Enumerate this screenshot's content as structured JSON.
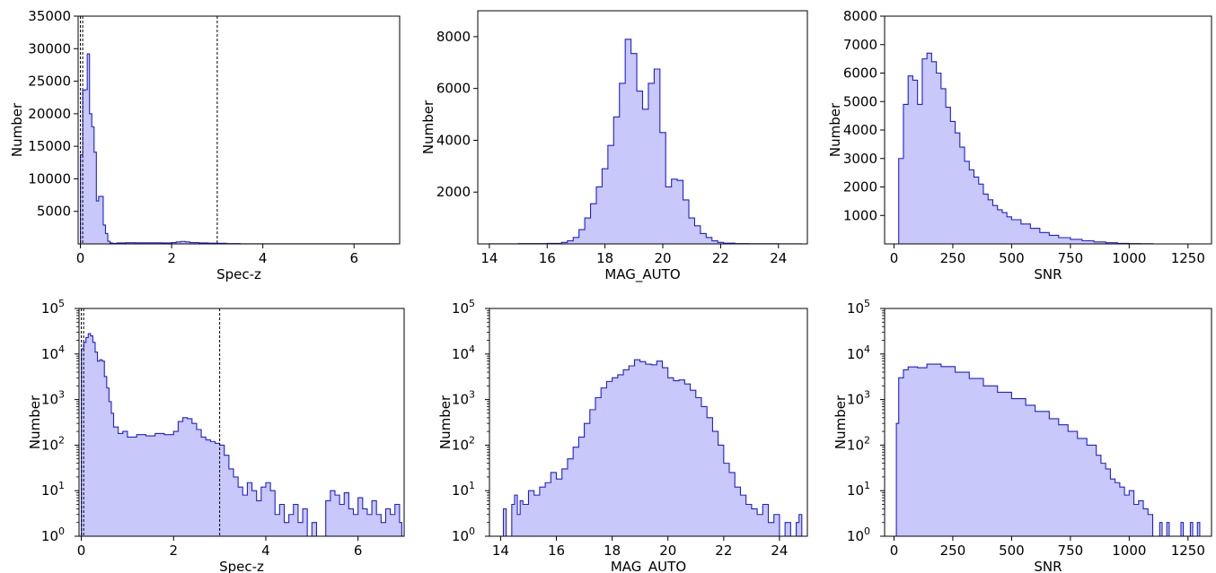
{
  "chart_data": [
    {
      "type": "histogram",
      "xlabel": "Spec-z",
      "ylabel": "Number",
      "yscale": "linear",
      "xlim": [
        -0.05,
        7.0
      ],
      "ylim": [
        0,
        35000
      ],
      "xticks": [
        0,
        2,
        4,
        6
      ],
      "yticks": [
        5000,
        10000,
        15000,
        20000,
        25000,
        30000,
        35000
      ],
      "ytick_labels": [
        "5000",
        "10000",
        "15000",
        "20000",
        "25000",
        "30000",
        "35000"
      ],
      "vlines": [
        0.0,
        0.05,
        3.0
      ],
      "color": "#1f1fd6",
      "fill": "#c8c8fa",
      "bins": [
        [
          0.0,
          13700
        ],
        [
          0.05,
          23600
        ],
        [
          0.1,
          23700
        ],
        [
          0.15,
          29200
        ],
        [
          0.2,
          20000
        ],
        [
          0.25,
          18000
        ],
        [
          0.3,
          14100
        ],
        [
          0.35,
          6600
        ],
        [
          0.4,
          7300
        ],
        [
          0.45,
          7300
        ],
        [
          0.5,
          2900
        ],
        [
          0.55,
          1600
        ],
        [
          0.6,
          400
        ],
        [
          0.65,
          150
        ],
        [
          0.7,
          80
        ],
        [
          0.8,
          150
        ],
        [
          1.0,
          180
        ],
        [
          1.2,
          170
        ],
        [
          1.5,
          160
        ],
        [
          1.8,
          150
        ],
        [
          2.0,
          200
        ],
        [
          2.1,
          300
        ],
        [
          2.2,
          380
        ],
        [
          2.3,
          300
        ],
        [
          2.4,
          200
        ],
        [
          2.6,
          140
        ],
        [
          2.8,
          110
        ],
        [
          3.0,
          90
        ],
        [
          3.2,
          40
        ],
        [
          3.5,
          15
        ],
        [
          4.0,
          5
        ],
        [
          5.0,
          3
        ],
        [
          6.0,
          5
        ],
        [
          6.95,
          0
        ]
      ]
    },
    {
      "type": "histogram",
      "xlabel": "MAG_AUTO",
      "ylabel": "Number",
      "yscale": "linear",
      "xlim": [
        13.6,
        25.0
      ],
      "ylim": [
        0,
        9000
      ],
      "xticks": [
        14,
        16,
        18,
        20,
        22,
        24
      ],
      "yticks": [
        2000,
        4000,
        6000,
        8000
      ],
      "ytick_labels": [
        "2000",
        "4000",
        "6000",
        "8000"
      ],
      "color": "#1f1fd6",
      "fill": "#c8c8fa",
      "bins": [
        [
          14.0,
          4
        ],
        [
          15.0,
          10
        ],
        [
          16.0,
          20
        ],
        [
          16.5,
          60
        ],
        [
          16.7,
          120
        ],
        [
          16.9,
          250
        ],
        [
          17.1,
          550
        ],
        [
          17.3,
          1000
        ],
        [
          17.5,
          1550
        ],
        [
          17.7,
          2200
        ],
        [
          17.9,
          2900
        ],
        [
          18.1,
          3800
        ],
        [
          18.3,
          4900
        ],
        [
          18.5,
          6200
        ],
        [
          18.7,
          7900
        ],
        [
          18.9,
          7350
        ],
        [
          19.1,
          5900
        ],
        [
          19.3,
          5200
        ],
        [
          19.5,
          6200
        ],
        [
          19.7,
          6750
        ],
        [
          19.9,
          4300
        ],
        [
          20.1,
          2200
        ],
        [
          20.3,
          2500
        ],
        [
          20.5,
          2450
        ],
        [
          20.7,
          1700
        ],
        [
          20.9,
          1000
        ],
        [
          21.1,
          700
        ],
        [
          21.3,
          400
        ],
        [
          21.5,
          250
        ],
        [
          21.7,
          120
        ],
        [
          21.9,
          60
        ],
        [
          22.1,
          30
        ],
        [
          22.5,
          10
        ],
        [
          23.0,
          5
        ],
        [
          24.0,
          3
        ],
        [
          24.8,
          0
        ]
      ]
    },
    {
      "type": "histogram",
      "xlabel": "SNR",
      "ylabel": "Number",
      "yscale": "linear",
      "xlim": [
        -40,
        1350
      ],
      "ylim": [
        0,
        8000
      ],
      "xticks": [
        0,
        250,
        500,
        750,
        1000,
        1250
      ],
      "yticks": [
        1000,
        2000,
        3000,
        4000,
        5000,
        6000,
        7000,
        8000
      ],
      "ytick_labels": [
        "1000",
        "2000",
        "3000",
        "4000",
        "5000",
        "6000",
        "7000",
        "8000"
      ],
      "color": "#1f1fd6",
      "fill": "#c8c8fa",
      "bins": [
        [
          0,
          0
        ],
        [
          20,
          3000
        ],
        [
          40,
          4900
        ],
        [
          60,
          5900
        ],
        [
          80,
          5750
        ],
        [
          100,
          4900
        ],
        [
          120,
          6500
        ],
        [
          140,
          6700
        ],
        [
          160,
          6400
        ],
        [
          180,
          6000
        ],
        [
          200,
          5450
        ],
        [
          220,
          4800
        ],
        [
          240,
          4300
        ],
        [
          260,
          3900
        ],
        [
          280,
          3400
        ],
        [
          300,
          2900
        ],
        [
          320,
          2600
        ],
        [
          340,
          2350
        ],
        [
          360,
          2100
        ],
        [
          380,
          1750
        ],
        [
          400,
          1550
        ],
        [
          420,
          1350
        ],
        [
          440,
          1200
        ],
        [
          460,
          1100
        ],
        [
          480,
          950
        ],
        [
          500,
          850
        ],
        [
          540,
          700
        ],
        [
          580,
          550
        ],
        [
          620,
          400
        ],
        [
          660,
          300
        ],
        [
          700,
          220
        ],
        [
          750,
          160
        ],
        [
          800,
          110
        ],
        [
          850,
          70
        ],
        [
          900,
          40
        ],
        [
          950,
          20
        ],
        [
          1000,
          10
        ],
        [
          1050,
          5
        ],
        [
          1100,
          0
        ]
      ]
    },
    {
      "type": "histogram",
      "xlabel": "Spec-z",
      "ylabel": "Number",
      "yscale": "log",
      "xlim": [
        -0.05,
        7.0
      ],
      "ylim": [
        1,
        100000
      ],
      "xticks": [
        0,
        2,
        4,
        6
      ],
      "yticks": [
        1,
        10,
        100,
        1000,
        10000,
        100000
      ],
      "ytick_labels": [
        "10^0",
        "10^1",
        "10^2",
        "10^3",
        "10^4",
        "10^5"
      ],
      "vlines": [
        0.0,
        0.05,
        3.0
      ],
      "color": "#1f1fd6",
      "fill": "#c8c8fa",
      "bins": [
        [
          0.0,
          13000
        ],
        [
          0.05,
          18000
        ],
        [
          0.1,
          23000
        ],
        [
          0.15,
          28000
        ],
        [
          0.2,
          25000
        ],
        [
          0.25,
          18000
        ],
        [
          0.3,
          11000
        ],
        [
          0.35,
          7000
        ],
        [
          0.4,
          7500
        ],
        [
          0.45,
          7000
        ],
        [
          0.5,
          3200
        ],
        [
          0.55,
          1800
        ],
        [
          0.6,
          900
        ],
        [
          0.65,
          500
        ],
        [
          0.7,
          250
        ],
        [
          0.8,
          180
        ],
        [
          0.9,
          200
        ],
        [
          1.0,
          150
        ],
        [
          1.2,
          170
        ],
        [
          1.4,
          160
        ],
        [
          1.6,
          180
        ],
        [
          1.8,
          170
        ],
        [
          2.0,
          200
        ],
        [
          2.1,
          330
        ],
        [
          2.2,
          400
        ],
        [
          2.3,
          380
        ],
        [
          2.4,
          300
        ],
        [
          2.5,
          220
        ],
        [
          2.6,
          150
        ],
        [
          2.7,
          130
        ],
        [
          2.8,
          120
        ],
        [
          2.9,
          110
        ],
        [
          3.0,
          100
        ],
        [
          3.1,
          60
        ],
        [
          3.2,
          30
        ],
        [
          3.3,
          20
        ],
        [
          3.4,
          12
        ],
        [
          3.5,
          8
        ],
        [
          3.6,
          15
        ],
        [
          3.7,
          10
        ],
        [
          3.8,
          6
        ],
        [
          3.9,
          12
        ],
        [
          4.0,
          15
        ],
        [
          4.1,
          10
        ],
        [
          4.2,
          3
        ],
        [
          4.3,
          5
        ],
        [
          4.4,
          2
        ],
        [
          4.5,
          3
        ],
        [
          4.6,
          5
        ],
        [
          4.7,
          2
        ],
        [
          4.8,
          4
        ],
        [
          4.9,
          1
        ],
        [
          5.0,
          2
        ],
        [
          5.1,
          1
        ],
        [
          5.2,
          0
        ],
        [
          5.3,
          6
        ],
        [
          5.4,
          10
        ],
        [
          5.5,
          8
        ],
        [
          5.6,
          5
        ],
        [
          5.7,
          9
        ],
        [
          5.8,
          4
        ],
        [
          5.9,
          3
        ],
        [
          6.0,
          7
        ],
        [
          6.1,
          4
        ],
        [
          6.2,
          3
        ],
        [
          6.3,
          6
        ],
        [
          6.4,
          3
        ],
        [
          6.5,
          2
        ],
        [
          6.6,
          4
        ],
        [
          6.7,
          3
        ],
        [
          6.8,
          5
        ],
        [
          6.9,
          2
        ],
        [
          6.95,
          0
        ]
      ]
    },
    {
      "type": "histogram",
      "xlabel": "MAG_AUTO",
      "ylabel": "Number",
      "yscale": "log",
      "xlim": [
        13.6,
        25.0
      ],
      "ylim": [
        1,
        100000
      ],
      "xticks": [
        14,
        16,
        18,
        20,
        22,
        24
      ],
      "yticks": [
        1,
        10,
        100,
        1000,
        10000,
        100000
      ],
      "ytick_labels": [
        "10^0",
        "10^1",
        "10^2",
        "10^3",
        "10^4",
        "10^5"
      ],
      "color": "#1f1fd6",
      "fill": "#c8c8fa",
      "bins": [
        [
          14.1,
          4
        ],
        [
          14.2,
          1
        ],
        [
          14.4,
          5
        ],
        [
          14.5,
          8
        ],
        [
          14.6,
          3
        ],
        [
          14.7,
          6
        ],
        [
          14.8,
          5
        ],
        [
          15.0,
          10
        ],
        [
          15.2,
          8
        ],
        [
          15.4,
          12
        ],
        [
          15.6,
          15
        ],
        [
          15.8,
          25
        ],
        [
          16.0,
          18
        ],
        [
          16.2,
          30
        ],
        [
          16.4,
          50
        ],
        [
          16.6,
          90
        ],
        [
          16.8,
          150
        ],
        [
          17.0,
          300
        ],
        [
          17.2,
          600
        ],
        [
          17.4,
          1100
        ],
        [
          17.6,
          1800
        ],
        [
          17.8,
          2500
        ],
        [
          18.0,
          3000
        ],
        [
          18.2,
          3500
        ],
        [
          18.4,
          4500
        ],
        [
          18.6,
          5500
        ],
        [
          18.8,
          7500
        ],
        [
          19.0,
          6800
        ],
        [
          19.2,
          6000
        ],
        [
          19.4,
          5800
        ],
        [
          19.6,
          7000
        ],
        [
          19.8,
          5000
        ],
        [
          20.0,
          3000
        ],
        [
          20.2,
          2600
        ],
        [
          20.4,
          2700
        ],
        [
          20.6,
          2200
        ],
        [
          20.8,
          1600
        ],
        [
          21.0,
          1100
        ],
        [
          21.2,
          700
        ],
        [
          21.4,
          400
        ],
        [
          21.6,
          200
        ],
        [
          21.8,
          100
        ],
        [
          22.0,
          40
        ],
        [
          22.2,
          25
        ],
        [
          22.4,
          12
        ],
        [
          22.6,
          8
        ],
        [
          22.8,
          5
        ],
        [
          23.0,
          4
        ],
        [
          23.2,
          3
        ],
        [
          23.4,
          5
        ],
        [
          23.6,
          2
        ],
        [
          23.8,
          3
        ],
        [
          24.0,
          1
        ],
        [
          24.2,
          2
        ],
        [
          24.4,
          1
        ],
        [
          24.6,
          2
        ],
        [
          24.7,
          3
        ],
        [
          24.8,
          0
        ]
      ]
    },
    {
      "type": "histogram",
      "xlabel": "SNR",
      "ylabel": "Number",
      "yscale": "log",
      "xlim": [
        -40,
        1350
      ],
      "ylim": [
        1,
        100000
      ],
      "xticks": [
        0,
        250,
        500,
        750,
        1000,
        1250
      ],
      "yticks": [
        1,
        10,
        100,
        1000,
        10000,
        100000
      ],
      "ytick_labels": [
        "10^0",
        "10^1",
        "10^2",
        "10^3",
        "10^4",
        "10^5"
      ],
      "color": "#1f1fd6",
      "fill": "#c8c8fa",
      "bins": [
        [
          0,
          0
        ],
        [
          10,
          300
        ],
        [
          20,
          3000
        ],
        [
          40,
          4500
        ],
        [
          60,
          5200
        ],
        [
          100,
          5000
        ],
        [
          140,
          6000
        ],
        [
          200,
          5300
        ],
        [
          260,
          4000
        ],
        [
          320,
          2900
        ],
        [
          380,
          2000
        ],
        [
          440,
          1450
        ],
        [
          500,
          1050
        ],
        [
          560,
          750
        ],
        [
          600,
          550
        ],
        [
          660,
          380
        ],
        [
          700,
          280
        ],
        [
          740,
          200
        ],
        [
          780,
          140
        ],
        [
          820,
          100
        ],
        [
          860,
          60
        ],
        [
          880,
          40
        ],
        [
          900,
          30
        ],
        [
          920,
          18
        ],
        [
          940,
          15
        ],
        [
          960,
          12
        ],
        [
          980,
          8
        ],
        [
          1000,
          10
        ],
        [
          1020,
          5
        ],
        [
          1040,
          6
        ],
        [
          1060,
          4
        ],
        [
          1080,
          3
        ],
        [
          1100,
          0
        ],
        [
          1130,
          2
        ],
        [
          1140,
          0
        ],
        [
          1160,
          2
        ],
        [
          1170,
          0
        ],
        [
          1220,
          2
        ],
        [
          1230,
          0
        ],
        [
          1260,
          2
        ],
        [
          1270,
          0
        ],
        [
          1290,
          2
        ],
        [
          1300,
          0
        ]
      ]
    }
  ]
}
